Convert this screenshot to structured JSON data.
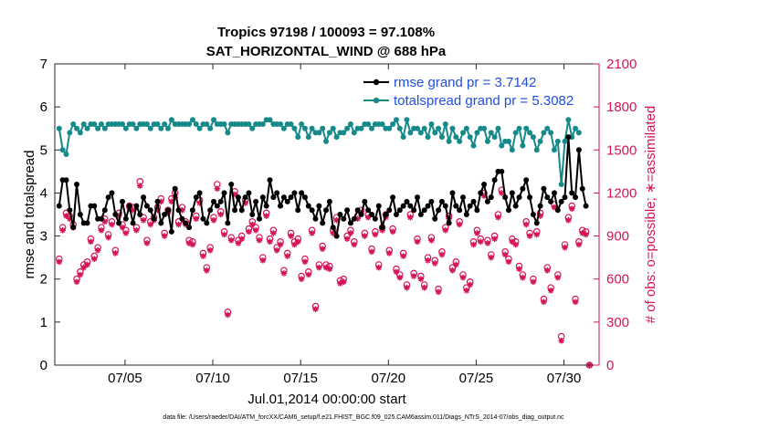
{
  "chart_data": {
    "type": "line",
    "title_line1": "Tropics 97198 / 100093 = 97.108%",
    "title_line2": "SAT_HORIZONTAL_WIND @ 688 hPa",
    "xlabel": "Jul.01,2014 00:00:00 start",
    "ylabel_left": "rmse and totalspread",
    "ylabel_right": "# of obs: o=possible; ∗=assimilated",
    "footnote": "data file: /Users/raeder/DAI/ATM_forcXX/CAM6_setup/f.e21.FHIST_BGC.f09_025.CAM6assim.011/Diags_NTrS_2014-07/obs_diag_output.nc",
    "x_tick_labels": [
      "07/05",
      "07/10",
      "07/15",
      "07/20",
      "07/25",
      "07/30"
    ],
    "x_tick_days": [
      5,
      10,
      15,
      20,
      25,
      30
    ],
    "xlim": [
      1,
      32
    ],
    "ylim_left": [
      0,
      7
    ],
    "y_ticks_left": [
      "0",
      "1",
      "2",
      "3",
      "4",
      "5",
      "6",
      "7"
    ],
    "ylim_right": [
      0,
      2100
    ],
    "y_ticks_right": [
      "0",
      "300",
      "600",
      "900",
      "1200",
      "1500",
      "1800",
      "2100"
    ],
    "colors": {
      "rmse": "#000000",
      "spread": "#168a8a",
      "obs": "#d4145a",
      "right_axis": "#d4145a",
      "legend_text": "#1f4fe0"
    },
    "series": [
      {
        "name": "rmse grand pr = 3.7142",
        "axis": "left",
        "values": [
          3.7,
          4.3,
          4.3,
          3.6,
          3.2,
          4.2,
          3.5,
          3.3,
          3.3,
          3.7,
          3.7,
          3.4,
          3.4,
          3.6,
          3.9,
          4.0,
          3.5,
          3.3,
          3.8,
          3.4,
          3.7,
          3.3,
          3.7,
          3.5,
          3.9,
          3.7,
          3.6,
          3.4,
          3.8,
          3.3,
          3.5,
          3.6,
          3.1,
          4.1,
          3.6,
          3.4,
          3.3,
          3.2,
          3.6,
          3.9,
          4.0,
          3.4,
          3.3,
          3.6,
          3.8,
          3.7,
          3.8,
          4.0,
          3.3,
          4.2,
          3.6,
          3.9,
          3.6,
          3.9,
          4.0,
          3.5,
          3.8,
          3.4,
          3.9,
          3.7,
          4.3,
          3.9,
          4.0,
          3.7,
          3.9,
          3.8,
          3.9,
          4.0,
          3.6,
          4.0,
          3.9,
          3.7,
          3.6,
          3.4,
          3.7,
          3.3,
          3.6,
          3.8,
          3.2,
          3.0,
          3.5,
          3.4,
          3.6,
          3.3,
          3.4,
          3.6,
          3.5,
          3.8,
          3.6,
          3.5,
          3.4,
          3.7,
          3.2,
          3.5,
          3.6,
          3.9,
          3.5,
          3.6,
          3.7,
          3.8,
          3.7,
          3.6,
          3.9,
          3.5,
          3.6,
          3.7,
          3.8,
          3.4,
          3.6,
          3.8,
          3.7,
          3.3,
          4.0,
          3.7,
          3.6,
          3.9,
          3.5,
          3.7,
          3.8,
          3.6,
          4.0,
          4.2,
          3.8,
          3.9,
          4.3,
          4.5,
          4.5,
          3.9,
          3.6,
          4.0,
          3.7,
          3.9,
          4.1,
          4.3,
          3.9,
          3.5,
          3.3,
          3.7,
          4.1,
          3.9,
          3.8,
          4.0,
          3.6,
          3.8,
          3.9,
          5.3,
          4.0,
          3.9,
          5.0,
          4.1,
          3.7
        ]
      },
      {
        "name": "totalspread grand pr = 5.3082",
        "axis": "left",
        "values": [
          5.5,
          5.0,
          4.9,
          5.4,
          5.6,
          5.5,
          5.4,
          5.6,
          5.5,
          5.6,
          5.6,
          5.5,
          5.6,
          5.5,
          5.6,
          5.6,
          5.6,
          5.6,
          5.6,
          5.5,
          5.6,
          5.6,
          5.5,
          5.6,
          5.6,
          5.6,
          5.5,
          5.6,
          5.6,
          5.5,
          5.6,
          5.5,
          5.7,
          5.6,
          5.6,
          5.6,
          5.6,
          5.6,
          5.7,
          5.6,
          5.5,
          5.6,
          5.6,
          5.5,
          5.7,
          5.6,
          5.6,
          5.6,
          5.4,
          5.6,
          5.6,
          5.6,
          5.6,
          5.6,
          5.6,
          5.5,
          5.6,
          5.6,
          5.6,
          5.7,
          5.7,
          5.6,
          5.6,
          5.6,
          5.5,
          5.6,
          5.6,
          5.5,
          5.3,
          5.6,
          5.5,
          5.3,
          5.5,
          5.4,
          5.4,
          5.5,
          5.2,
          5.4,
          5.5,
          5.3,
          5.4,
          5.4,
          5.5,
          5.6,
          5.4,
          5.5,
          5.5,
          5.6,
          5.6,
          5.5,
          5.6,
          5.6,
          5.6,
          5.5,
          5.5,
          5.6,
          5.7,
          5.5,
          5.3,
          5.7,
          5.4,
          5.5,
          5.5,
          5.4,
          5.5,
          5.3,
          5.6,
          5.4,
          5.5,
          5.3,
          5.6,
          5.2,
          5.5,
          5.3,
          5.2,
          5.4,
          5.5,
          5.3,
          5.1,
          5.4,
          5.5,
          5.5,
          5.2,
          5.4,
          5.3,
          5.5,
          5.1,
          5.2,
          5.2,
          5.0,
          5.4,
          5.5,
          5.1,
          5.5,
          5.4,
          5.3,
          5.0,
          5.2,
          5.4,
          5.5,
          5.4,
          5.0,
          5.2,
          4.2,
          5.2,
          5.7,
          5.3,
          5.5,
          5.4
        ]
      },
      {
        "name": "# of obs possible",
        "axis": "right",
        "values": [
          740,
          960,
          1060,
          1040,
          980,
          600,
          650,
          700,
          720,
          880,
          760,
          820,
          960,
          1020,
          910,
          1000,
          800,
          1060,
          980,
          940,
          1110,
          1100,
          960,
          1280,
          1030,
          870,
          1000,
          1030,
          1100,
          1160,
          920,
          1080,
          1160,
          1200,
          1000,
          1100,
          1000,
          870,
          860,
          1040,
          1150,
          780,
          680,
          820,
          1030,
          1260,
          1070,
          930,
          370,
          890,
          1210,
          870,
          900,
          1150,
          950,
          1000,
          960,
          890,
          750,
          1060,
          880,
          940,
          820,
          860,
          660,
          780,
          920,
          860,
          880,
          620,
          740,
          650,
          940,
          410,
          700,
          830,
          700,
          690,
          940,
          1030,
          590,
          600,
          900,
          940,
          860,
          1040,
          1080,
          920,
          1050,
          810,
          930,
          700,
          960,
          1050,
          800,
          950,
          670,
          630,
          780,
          560,
          1050,
          640,
          880,
          620,
          560,
          750,
          890,
          730,
          530,
          790,
          960,
          1040,
          680,
          720,
          1000,
          630,
          540,
          580,
          860,
          940,
          880,
          1200,
          870,
          770,
          900,
          1050,
          1220,
          790,
          740,
          880,
          860,
          690,
          630,
          1000,
          920,
          600,
          930,
          1060,
          460,
          680,
          540,
          1120,
          630,
          200,
          840,
          1030,
          1110,
          460,
          860,
          940,
          930,
          0
        ]
      },
      {
        "name": "# of obs assimilated",
        "axis": "right",
        "values": [
          720,
          940,
          1040,
          1020,
          960,
          580,
          630,
          680,
          700,
          860,
          740,
          800,
          940,
          1000,
          890,
          980,
          780,
          1040,
          960,
          920,
          1090,
          1080,
          940,
          1250,
          1010,
          850,
          980,
          1010,
          1080,
          1140,
          900,
          1060,
          1140,
          1170,
          980,
          1080,
          980,
          850,
          840,
          1020,
          1130,
          760,
          660,
          800,
          1010,
          1230,
          1050,
          910,
          350,
          870,
          1190,
          850,
          880,
          1130,
          930,
          980,
          940,
          870,
          730,
          1040,
          860,
          920,
          800,
          840,
          640,
          760,
          900,
          840,
          860,
          600,
          720,
          630,
          920,
          390,
          680,
          810,
          680,
          670,
          920,
          1010,
          570,
          580,
          880,
          920,
          840,
          1020,
          1060,
          900,
          1030,
          790,
          910,
          680,
          940,
          1030,
          780,
          930,
          650,
          610,
          760,
          540,
          1030,
          620,
          860,
          600,
          540,
          730,
          870,
          710,
          510,
          770,
          940,
          1020,
          660,
          700,
          980,
          610,
          520,
          560,
          840,
          920,
          860,
          1180,
          850,
          750,
          880,
          1030,
          1200,
          770,
          720,
          860,
          840,
          670,
          610,
          980,
          900,
          580,
          910,
          1040,
          440,
          660,
          520,
          1100,
          610,
          170,
          820,
          1010,
          1090,
          440,
          840,
          920,
          910,
          0
        ]
      }
    ]
  }
}
